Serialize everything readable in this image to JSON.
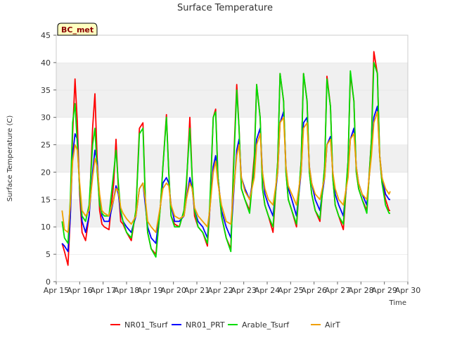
{
  "chart_data": {
    "type": "line",
    "title": "Surface Temperature",
    "xlabel": "Time",
    "ylabel": "Surface Temperature (C)",
    "badge": "BC_met",
    "ylim": [
      0,
      45
    ],
    "xlim": [
      15,
      30
    ],
    "yticks": [
      0,
      5,
      10,
      15,
      20,
      25,
      30,
      35,
      40,
      45
    ],
    "xticks": [
      {
        "x": 15,
        "label": "Apr 15"
      },
      {
        "x": 16,
        "label": "Apr 16"
      },
      {
        "x": 17,
        "label": "Apr 17"
      },
      {
        "x": 18,
        "label": "Apr 18"
      },
      {
        "x": 19,
        "label": "Apr 19"
      },
      {
        "x": 20,
        "label": "Apr 20"
      },
      {
        "x": 21,
        "label": "Apr 21"
      },
      {
        "x": 22,
        "label": "Apr 22"
      },
      {
        "x": 23,
        "label": "Apr 23"
      },
      {
        "x": 24,
        "label": "Apr 24"
      },
      {
        "x": 25,
        "label": "Apr 25"
      },
      {
        "x": 26,
        "label": "Apr 26"
      },
      {
        "x": 27,
        "label": "Apr 27"
      },
      {
        "x": 28,
        "label": "Apr 28"
      },
      {
        "x": 29,
        "label": "Apr 29"
      },
      {
        "x": 30,
        "label": "Apr 30"
      }
    ],
    "grid": "horizontal bands",
    "legend_position": "bottom",
    "series": [
      {
        "name": "NR01_Tsurf",
        "color": "#ff0000",
        "x": [
          15.25,
          15.35,
          15.5,
          15.6,
          15.7,
          15.8,
          15.9,
          16.0,
          16.1,
          16.25,
          16.4,
          16.55,
          16.65,
          16.75,
          16.85,
          16.95,
          17.05,
          17.25,
          17.45,
          17.55,
          17.65,
          17.75,
          17.85,
          18.0,
          18.2,
          18.4,
          18.55,
          18.7,
          18.8,
          18.9,
          19.05,
          19.25,
          19.45,
          19.55,
          19.7,
          19.8,
          19.9,
          20.05,
          20.25,
          20.45,
          20.55,
          20.7,
          20.8,
          20.9,
          21.05,
          21.25,
          21.45,
          21.55,
          21.7,
          21.8,
          21.9,
          22.05,
          22.25,
          22.45,
          22.55,
          22.7,
          22.8,
          22.9,
          23.05,
          23.25,
          23.45,
          23.55,
          23.7,
          23.8,
          23.9,
          24.05,
          24.25,
          24.45,
          24.55,
          24.7,
          24.8,
          24.9,
          25.05,
          25.25,
          25.45,
          25.55,
          25.7,
          25.8,
          25.9,
          26.05,
          26.25,
          26.45,
          26.55,
          26.7,
          26.8,
          26.9,
          27.05,
          27.25,
          27.45,
          27.55,
          27.7,
          27.8,
          27.9,
          28.05,
          28.25,
          28.45,
          28.55,
          28.7,
          28.8,
          28.9,
          29.05,
          29.2,
          29.25
        ],
        "y": [
          7.0,
          5.5,
          3.0,
          12.0,
          27.0,
          37.0,
          29.0,
          16.0,
          9.0,
          7.5,
          12.0,
          28.0,
          34.3,
          22.0,
          13.0,
          10.5,
          10.0,
          9.5,
          18.0,
          26.0,
          17.0,
          11.0,
          10.5,
          9.0,
          7.5,
          13.0,
          28.0,
          29.0,
          15.0,
          9.0,
          6.0,
          5.0,
          14.0,
          21.0,
          30.5,
          20.0,
          12.0,
          10.5,
          10.0,
          13.0,
          17.0,
          30.0,
          19.0,
          12.0,
          10.0,
          9.0,
          6.5,
          13.0,
          30.0,
          31.5,
          19.0,
          12.0,
          8.0,
          6.0,
          20.0,
          36.0,
          28.0,
          17.0,
          15.0,
          13.0,
          23.0,
          36.0,
          30.0,
          17.0,
          14.0,
          12.0,
          9.0,
          22.0,
          38.0,
          33.0,
          20.0,
          15.0,
          13.0,
          10.0,
          22.0,
          38.0,
          33.0,
          20.0,
          16.0,
          13.0,
          11.0,
          21.0,
          37.5,
          32.0,
          19.0,
          14.0,
          12.0,
          9.5,
          22.0,
          38.0,
          33.0,
          20.0,
          17.0,
          15.0,
          13.0,
          26.0,
          42.0,
          38.0,
          23.0,
          18.0,
          15.0,
          13.0,
          13.0
        ]
      },
      {
        "name": "NR01_PRT",
        "color": "#0000ff",
        "x": [
          15.25,
          15.35,
          15.5,
          15.6,
          15.7,
          15.8,
          15.9,
          16.0,
          16.1,
          16.25,
          16.4,
          16.55,
          16.65,
          16.75,
          16.85,
          16.95,
          17.05,
          17.25,
          17.45,
          17.55,
          17.65,
          17.75,
          17.85,
          18.0,
          18.2,
          18.4,
          18.55,
          18.7,
          18.8,
          18.9,
          19.05,
          19.25,
          19.45,
          19.55,
          19.7,
          19.8,
          19.9,
          20.05,
          20.25,
          20.45,
          20.55,
          20.7,
          20.8,
          20.9,
          21.05,
          21.25,
          21.45,
          21.55,
          21.7,
          21.8,
          21.9,
          22.05,
          22.25,
          22.45,
          22.55,
          22.7,
          22.8,
          22.9,
          23.05,
          23.25,
          23.45,
          23.55,
          23.7,
          23.8,
          23.9,
          24.05,
          24.25,
          24.45,
          24.55,
          24.7,
          24.8,
          24.9,
          25.05,
          25.25,
          25.45,
          25.55,
          25.7,
          25.8,
          25.9,
          26.05,
          26.25,
          26.45,
          26.55,
          26.7,
          26.8,
          26.9,
          27.05,
          27.25,
          27.45,
          27.55,
          27.7,
          27.8,
          27.9,
          28.05,
          28.25,
          28.45,
          28.55,
          28.7,
          28.8,
          28.9,
          29.05,
          29.2,
          29.25
        ],
        "y": [
          7.0,
          6.5,
          5.5,
          12.0,
          23.0,
          27.0,
          26.0,
          17.0,
          11.0,
          9.0,
          12.0,
          20.0,
          24.0,
          22.0,
          15.0,
          12.0,
          11.0,
          11.0,
          15.0,
          17.5,
          16.0,
          12.5,
          11.0,
          10.0,
          9.0,
          12.0,
          17.0,
          18.0,
          14.0,
          10.0,
          8.0,
          7.0,
          14.0,
          18.0,
          19.0,
          18.0,
          14.0,
          11.0,
          11.0,
          12.0,
          15.0,
          19.0,
          17.0,
          13.0,
          11.0,
          10.0,
          8.0,
          13.0,
          21.0,
          23.0,
          19.0,
          13.0,
          10.0,
          8.0,
          15.0,
          24.0,
          26.0,
          19.0,
          17.0,
          15.0,
          20.0,
          26.0,
          28.0,
          20.0,
          16.0,
          14.0,
          12.0,
          20.0,
          29.0,
          31.0,
          21.0,
          17.0,
          15.0,
          12.0,
          20.0,
          29.0,
          30.0,
          21.0,
          18.0,
          15.0,
          13.0,
          19.0,
          25.0,
          26.5,
          20.0,
          16.0,
          14.0,
          12.0,
          20.0,
          26.0,
          28.0,
          21.0,
          18.0,
          16.0,
          14.0,
          24.0,
          30.0,
          32.0,
          23.0,
          19.0,
          16.0,
          15.0,
          15.0
        ]
      },
      {
        "name": "Arable_Tsurf",
        "color": "#00dd00",
        "x": [
          15.25,
          15.35,
          15.5,
          15.6,
          15.7,
          15.8,
          15.9,
          16.0,
          16.1,
          16.25,
          16.4,
          16.55,
          16.65,
          16.75,
          16.85,
          16.95,
          17.05,
          17.25,
          17.45,
          17.55,
          17.65,
          17.75,
          17.85,
          18.0,
          18.2,
          18.4,
          18.55,
          18.7,
          18.8,
          18.9,
          19.05,
          19.25,
          19.45,
          19.55,
          19.7,
          19.8,
          19.9,
          20.05,
          20.25,
          20.45,
          20.55,
          20.7,
          20.8,
          20.9,
          21.05,
          21.25,
          21.45,
          21.55,
          21.7,
          21.8,
          21.9,
          22.05,
          22.25,
          22.45,
          22.55,
          22.7,
          22.8,
          22.9,
          23.05,
          23.25,
          23.45,
          23.55,
          23.7,
          23.8,
          23.9,
          24.05,
          24.25,
          24.45,
          24.55,
          24.7,
          24.8,
          24.9,
          25.05,
          25.25,
          25.45,
          25.55,
          25.7,
          25.8,
          25.9,
          26.05,
          26.25,
          26.45,
          26.55,
          26.7,
          26.8,
          26.9,
          27.05,
          27.25,
          27.45,
          27.55,
          27.7,
          27.8,
          27.9,
          28.05,
          28.25,
          28.45,
          28.55,
          28.7,
          28.8,
          28.9,
          29.05,
          29.2,
          29.25
        ],
        "y": [
          11.0,
          8.0,
          7.0,
          15.0,
          29.0,
          32.5,
          25.0,
          17.0,
          12.0,
          11.0,
          14.0,
          25.0,
          28.0,
          20.0,
          14.0,
          12.5,
          12.0,
          12.0,
          20.0,
          24.0,
          18.0,
          13.0,
          11.0,
          9.0,
          8.0,
          13.0,
          27.0,
          28.0,
          15.0,
          9.0,
          6.0,
          4.5,
          14.0,
          21.0,
          30.0,
          20.0,
          12.0,
          10.0,
          10.0,
          13.0,
          18.0,
          28.0,
          19.0,
          13.0,
          10.0,
          9.0,
          7.0,
          14.0,
          30.0,
          31.0,
          19.0,
          12.0,
          8.0,
          5.5,
          19.0,
          35.0,
          28.0,
          17.0,
          15.0,
          12.5,
          22.0,
          36.0,
          30.0,
          17.0,
          14.0,
          12.0,
          10.0,
          22.0,
          38.0,
          33.0,
          20.0,
          15.0,
          13.0,
          10.5,
          22.0,
          38.0,
          33.0,
          20.0,
          16.0,
          13.0,
          11.5,
          21.0,
          37.0,
          32.0,
          19.0,
          14.0,
          12.0,
          10.5,
          22.0,
          38.5,
          33.0,
          20.0,
          17.0,
          15.0,
          12.5,
          26.0,
          40.0,
          38.0,
          23.0,
          18.0,
          14.0,
          12.5,
          12.5
        ]
      },
      {
        "name": "AirT",
        "color": "#f0a000",
        "x": [
          15.25,
          15.35,
          15.5,
          15.6,
          15.7,
          15.8,
          15.9,
          16.0,
          16.1,
          16.25,
          16.4,
          16.55,
          16.65,
          16.75,
          16.85,
          16.95,
          17.05,
          17.25,
          17.45,
          17.55,
          17.65,
          17.75,
          17.85,
          18.0,
          18.2,
          18.4,
          18.55,
          18.7,
          18.8,
          18.9,
          19.05,
          19.25,
          19.45,
          19.55,
          19.7,
          19.8,
          19.9,
          20.05,
          20.25,
          20.45,
          20.55,
          20.7,
          20.8,
          20.9,
          21.05,
          21.25,
          21.45,
          21.55,
          21.7,
          21.8,
          21.9,
          22.05,
          22.25,
          22.45,
          22.55,
          22.7,
          22.8,
          22.9,
          23.05,
          23.25,
          23.45,
          23.55,
          23.7,
          23.8,
          23.9,
          24.05,
          24.25,
          24.45,
          24.55,
          24.7,
          24.8,
          24.9,
          25.05,
          25.25,
          25.45,
          25.55,
          25.7,
          25.8,
          25.9,
          26.05,
          26.25,
          26.45,
          26.55,
          26.7,
          26.8,
          26.9,
          27.05,
          27.25,
          27.45,
          27.55,
          27.7,
          27.8,
          27.9,
          28.05,
          28.25,
          28.45,
          28.55,
          28.7,
          28.8,
          28.9,
          29.05,
          29.2,
          29.25
        ],
        "y": [
          13.0,
          9.5,
          9.0,
          14.0,
          22.0,
          25.0,
          24.0,
          18.0,
          13.0,
          12.0,
          13.0,
          19.0,
          22.5,
          21.0,
          16.0,
          13.0,
          12.5,
          12.0,
          15.0,
          17.0,
          16.5,
          13.5,
          12.5,
          11.5,
          10.5,
          12.0,
          17.0,
          18.0,
          15.0,
          11.0,
          10.0,
          9.0,
          14.0,
          17.0,
          18.0,
          17.5,
          14.0,
          12.0,
          11.5,
          12.0,
          15.0,
          18.0,
          17.0,
          13.5,
          12.0,
          11.0,
          10.0,
          13.0,
          20.0,
          22.0,
          18.0,
          14.0,
          11.0,
          10.5,
          16.0,
          23.0,
          25.0,
          19.0,
          16.5,
          15.0,
          19.0,
          25.0,
          27.0,
          20.0,
          17.0,
          15.0,
          14.0,
          20.0,
          29.0,
          30.0,
          21.0,
          17.5,
          16.0,
          14.0,
          20.0,
          28.0,
          29.0,
          21.0,
          18.0,
          16.0,
          15.0,
          19.0,
          25.0,
          26.0,
          20.0,
          17.0,
          15.0,
          14.0,
          19.0,
          26.0,
          27.0,
          21.0,
          18.0,
          16.0,
          15.0,
          23.0,
          29.0,
          31.0,
          23.0,
          19.0,
          17.0,
          16.0,
          16.5
        ]
      }
    ]
  }
}
